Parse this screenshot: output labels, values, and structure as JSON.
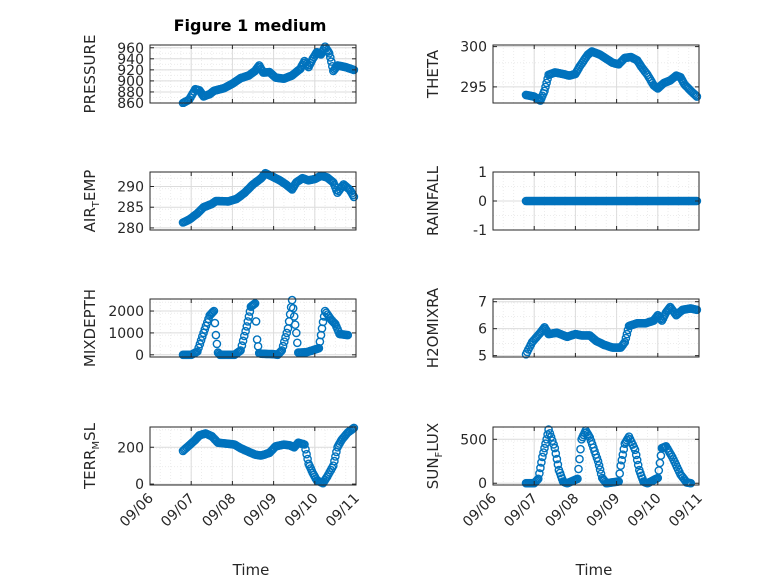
{
  "figure_title": "Figure 1 medium",
  "colors": {
    "marker": "#0072bd",
    "axis": "#262626",
    "grid": "#dcdcdc",
    "minor_grid": "#ececec"
  },
  "x_axis": {
    "label": "Time",
    "tick_labels": [
      "09/06",
      "09/07",
      "09/08",
      "09/09",
      "09/10",
      "09/11"
    ],
    "ticks": [
      0,
      1,
      2,
      3,
      4,
      5
    ],
    "range": [
      0,
      5
    ]
  },
  "chart_data": [
    {
      "type": "scatter",
      "marker": "open-circle",
      "ylabel": "PRESSURE",
      "ylim": [
        860,
        965
      ],
      "yticks": [
        860,
        880,
        900,
        920,
        940,
        960
      ],
      "ytick_labels": [
        "860",
        "880",
        "900",
        "920",
        "940",
        "960"
      ],
      "keypoints": [
        [
          0.8,
          860
        ],
        [
          0.95,
          866
        ],
        [
          1.1,
          885
        ],
        [
          1.2,
          883
        ],
        [
          1.3,
          872
        ],
        [
          1.45,
          876
        ],
        [
          1.55,
          882
        ],
        [
          1.8,
          887
        ],
        [
          2.0,
          895
        ],
        [
          2.2,
          905
        ],
        [
          2.4,
          910
        ],
        [
          2.55,
          918
        ],
        [
          2.65,
          928
        ],
        [
          2.75,
          915
        ],
        [
          2.9,
          916
        ],
        [
          3.05,
          906
        ],
        [
          3.25,
          904
        ],
        [
          3.45,
          910
        ],
        [
          3.65,
          922
        ],
        [
          3.75,
          936
        ],
        [
          3.85,
          925
        ],
        [
          3.95,
          940
        ],
        [
          4.05,
          952
        ],
        [
          4.15,
          948
        ],
        [
          4.25,
          962
        ],
        [
          4.35,
          950
        ],
        [
          4.4,
          935
        ],
        [
          4.45,
          918
        ],
        [
          4.55,
          928
        ],
        [
          4.75,
          925
        ],
        [
          4.95,
          920
        ]
      ]
    },
    {
      "type": "scatter",
      "marker": "open-circle",
      "ylabel": "THETA",
      "ylim": [
        293,
        300.2
      ],
      "yticks": [
        295,
        300
      ],
      "ytick_labels": [
        "295",
        "300"
      ],
      "keypoints": [
        [
          0.8,
          294
        ],
        [
          1.0,
          293.8
        ],
        [
          1.15,
          293.3
        ],
        [
          1.25,
          294.5
        ],
        [
          1.35,
          296.5
        ],
        [
          1.5,
          296.8
        ],
        [
          1.7,
          296.6
        ],
        [
          1.85,
          296.4
        ],
        [
          2.0,
          296.6
        ],
        [
          2.1,
          297.5
        ],
        [
          2.3,
          299
        ],
        [
          2.4,
          299.4
        ],
        [
          2.6,
          299
        ],
        [
          2.75,
          298.5
        ],
        [
          2.9,
          298
        ],
        [
          3.05,
          297.8
        ],
        [
          3.2,
          298.6
        ],
        [
          3.35,
          298.7
        ],
        [
          3.5,
          298.3
        ],
        [
          3.6,
          297.5
        ],
        [
          3.75,
          296.5
        ],
        [
          3.9,
          295.2
        ],
        [
          4.0,
          294.8
        ],
        [
          4.15,
          295.5
        ],
        [
          4.3,
          295.8
        ],
        [
          4.45,
          296.4
        ],
        [
          4.55,
          296.2
        ],
        [
          4.65,
          295.3
        ],
        [
          4.8,
          294.5
        ],
        [
          4.95,
          293.8
        ]
      ]
    },
    {
      "type": "scatter",
      "marker": "open-circle",
      "ylabel": "AIR_TEMP",
      "ylabel_main": "AIR",
      "ylabel_sub": "T",
      "ylabel_tail": "EMP",
      "ylim": [
        279.5,
        293.5
      ],
      "yticks": [
        280,
        285,
        290
      ],
      "ytick_labels": [
        "280",
        "285",
        "290"
      ],
      "keypoints": [
        [
          0.8,
          281.3
        ],
        [
          0.95,
          282
        ],
        [
          1.15,
          283.5
        ],
        [
          1.3,
          285
        ],
        [
          1.5,
          285.8
        ],
        [
          1.6,
          286.5
        ],
        [
          1.9,
          286.4
        ],
        [
          2.1,
          287
        ],
        [
          2.3,
          288.5
        ],
        [
          2.5,
          290.5
        ],
        [
          2.7,
          292
        ],
        [
          2.8,
          293.2
        ],
        [
          2.95,
          292.5
        ],
        [
          3.15,
          291.5
        ],
        [
          3.3,
          290.5
        ],
        [
          3.45,
          289.3
        ],
        [
          3.55,
          291
        ],
        [
          3.7,
          292
        ],
        [
          3.85,
          291.5
        ],
        [
          4.0,
          291.8
        ],
        [
          4.15,
          292.6
        ],
        [
          4.3,
          292.2
        ],
        [
          4.45,
          291
        ],
        [
          4.55,
          288.5
        ],
        [
          4.7,
          290.5
        ],
        [
          4.85,
          289.2
        ],
        [
          4.95,
          287.5
        ]
      ]
    },
    {
      "type": "scatter",
      "marker": "open-circle",
      "ylabel": "RAINFALL",
      "ylim": [
        -1,
        1
      ],
      "yticks": [
        -1,
        0,
        1
      ],
      "ytick_labels": [
        "-1",
        "0",
        "1"
      ],
      "keypoints": [
        [
          0.8,
          0
        ],
        [
          4.95,
          0
        ]
      ]
    },
    {
      "type": "scatter",
      "marker": "open-circle",
      "ylabel": "MIXDEPTH",
      "ylim": [
        -100,
        2550
      ],
      "yticks": [
        0,
        1000,
        2000
      ],
      "ytick_labels": [
        "0",
        "1000",
        "2000"
      ],
      "keypoints": [
        [
          0.8,
          0
        ],
        [
          1.0,
          0
        ],
        [
          1.15,
          150
        ],
        [
          1.3,
          1000
        ],
        [
          1.45,
          1800
        ],
        [
          1.55,
          2000
        ],
        [
          1.6,
          900
        ],
        [
          1.65,
          100
        ],
        [
          1.7,
          0
        ],
        [
          2.05,
          0
        ],
        [
          2.2,
          200
        ],
        [
          2.35,
          1300
        ],
        [
          2.45,
          2200
        ],
        [
          2.55,
          2350
        ],
        [
          2.6,
          700
        ],
        [
          2.65,
          80
        ],
        [
          2.7,
          50
        ],
        [
          3.0,
          30
        ],
        [
          3.1,
          0
        ],
        [
          3.2,
          200
        ],
        [
          3.35,
          1200
        ],
        [
          3.45,
          2500
        ],
        [
          3.55,
          1000
        ],
        [
          3.6,
          100
        ],
        [
          3.8,
          120
        ],
        [
          4.1,
          300
        ],
        [
          4.2,
          1500
        ],
        [
          4.25,
          2000
        ],
        [
          4.4,
          1600
        ],
        [
          4.5,
          1400
        ],
        [
          4.6,
          950
        ],
        [
          4.8,
          900
        ]
      ]
    },
    {
      "type": "scatter",
      "marker": "open-circle",
      "ylabel": "H2OMIXRA",
      "ylim": [
        4.95,
        7.1
      ],
      "yticks": [
        5,
        6,
        7
      ],
      "ytick_labels": [
        "5",
        "6",
        "7"
      ],
      "keypoints": [
        [
          0.8,
          5.05
        ],
        [
          0.95,
          5.5
        ],
        [
          1.15,
          5.85
        ],
        [
          1.25,
          6.05
        ],
        [
          1.35,
          5.8
        ],
        [
          1.55,
          5.85
        ],
        [
          1.8,
          5.7
        ],
        [
          2.0,
          5.8
        ],
        [
          2.15,
          5.75
        ],
        [
          2.35,
          5.75
        ],
        [
          2.5,
          5.55
        ],
        [
          2.7,
          5.4
        ],
        [
          2.9,
          5.3
        ],
        [
          3.1,
          5.3
        ],
        [
          3.2,
          5.5
        ],
        [
          3.3,
          6.1
        ],
        [
          3.5,
          6.2
        ],
        [
          3.7,
          6.2
        ],
        [
          3.9,
          6.3
        ],
        [
          4.0,
          6.5
        ],
        [
          4.1,
          6.3
        ],
        [
          4.2,
          6.6
        ],
        [
          4.3,
          6.8
        ],
        [
          4.45,
          6.5
        ],
        [
          4.6,
          6.7
        ],
        [
          4.8,
          6.75
        ],
        [
          4.95,
          6.7
        ]
      ]
    },
    {
      "type": "scatter",
      "marker": "open-circle",
      "ylabel": "TERR_MSL",
      "ylabel_main": "TERR",
      "ylabel_sub": "M",
      "ylabel_tail": "SL",
      "ylim": [
        -5,
        310
      ],
      "yticks": [
        0,
        200
      ],
      "ytick_labels": [
        "0",
        "200"
      ],
      "keypoints": [
        [
          0.8,
          180
        ],
        [
          0.95,
          210
        ],
        [
          1.1,
          240
        ],
        [
          1.2,
          265
        ],
        [
          1.35,
          275
        ],
        [
          1.5,
          260
        ],
        [
          1.65,
          225
        ],
        [
          1.85,
          220
        ],
        [
          2.05,
          215
        ],
        [
          2.2,
          195
        ],
        [
          2.4,
          175
        ],
        [
          2.55,
          160
        ],
        [
          2.7,
          155
        ],
        [
          2.9,
          170
        ],
        [
          3.05,
          205
        ],
        [
          3.25,
          215
        ],
        [
          3.4,
          210
        ],
        [
          3.5,
          200
        ],
        [
          3.6,
          225
        ],
        [
          3.75,
          215
        ],
        [
          3.85,
          110
        ],
        [
          3.95,
          60
        ],
        [
          4.05,
          20
        ],
        [
          4.2,
          5
        ],
        [
          4.3,
          40
        ],
        [
          4.45,
          100
        ],
        [
          4.55,
          200
        ],
        [
          4.65,
          240
        ],
        [
          4.8,
          280
        ],
        [
          4.95,
          305
        ]
      ]
    },
    {
      "type": "scatter",
      "marker": "open-circle",
      "ylabel": "SUN_FLUX",
      "ylabel_main": "SUN",
      "ylabel_sub": "F",
      "ylabel_tail": "LUX",
      "ylim": [
        -20,
        640
      ],
      "yticks": [
        0,
        500
      ],
      "ytick_labels": [
        "0",
        "500"
      ],
      "keypoints": [
        [
          0.8,
          0
        ],
        [
          1.0,
          0
        ],
        [
          1.1,
          50
        ],
        [
          1.2,
          300
        ],
        [
          1.3,
          500
        ],
        [
          1.35,
          610
        ],
        [
          1.5,
          400
        ],
        [
          1.6,
          150
        ],
        [
          1.7,
          20
        ],
        [
          1.8,
          0
        ],
        [
          2.05,
          50
        ],
        [
          2.15,
          500
        ],
        [
          2.25,
          600
        ],
        [
          2.35,
          520
        ],
        [
          2.55,
          250
        ],
        [
          2.65,
          60
        ],
        [
          2.75,
          0
        ],
        [
          3.05,
          20
        ],
        [
          3.1,
          200
        ],
        [
          3.2,
          450
        ],
        [
          3.3,
          530
        ],
        [
          3.45,
          380
        ],
        [
          3.55,
          150
        ],
        [
          3.65,
          20
        ],
        [
          3.75,
          0
        ],
        [
          4.0,
          60
        ],
        [
          4.1,
          400
        ],
        [
          4.2,
          420
        ],
        [
          4.35,
          300
        ],
        [
          4.55,
          100
        ],
        [
          4.7,
          10
        ],
        [
          4.8,
          0
        ]
      ]
    }
  ]
}
